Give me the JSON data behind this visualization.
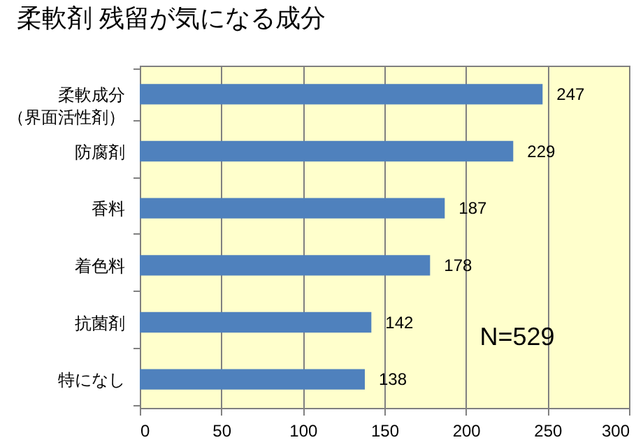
{
  "chart_data": {
    "type": "bar",
    "orientation": "horizontal",
    "title": "柔軟剤 残留が気になる成分",
    "categories": [
      "柔軟成分（界面活性剤）",
      "防腐剤",
      "香料",
      "着色料",
      "抗菌剤",
      "特になし"
    ],
    "values": [
      247,
      229,
      187,
      178,
      142,
      138
    ],
    "color": "#4f81bd",
    "xlim": [
      0,
      300
    ],
    "xticks": [
      0,
      50,
      100,
      150,
      200,
      250,
      300
    ],
    "grid": "x",
    "data_labels": true,
    "annotations": [
      "N=529"
    ]
  }
}
